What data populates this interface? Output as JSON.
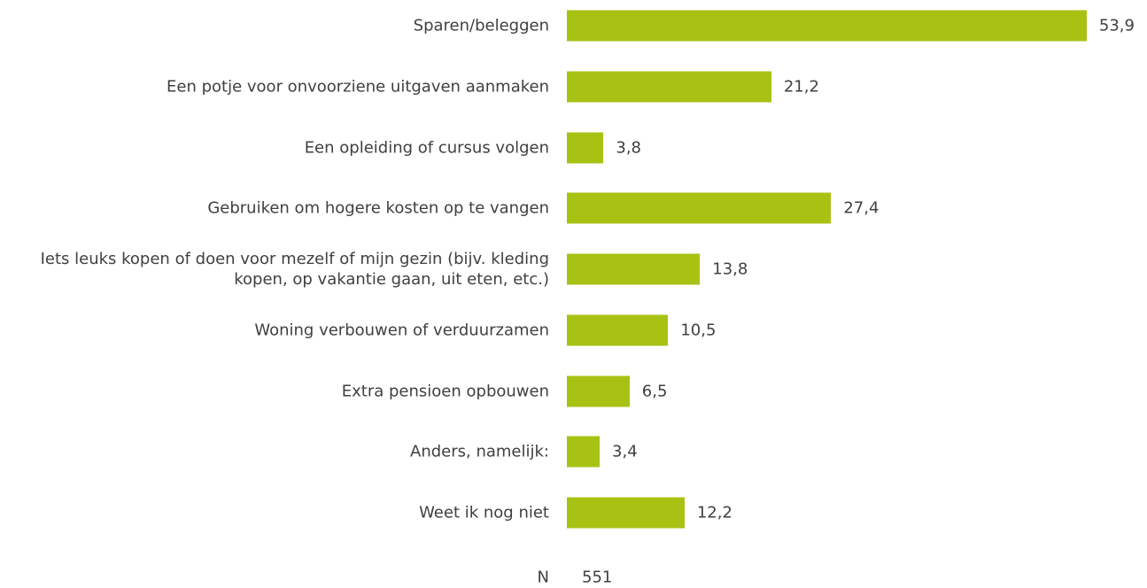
{
  "chart_data": {
    "type": "bar",
    "orientation": "horizontal",
    "color": "#a8c214",
    "categories": [
      "Sparen/beleggen",
      "Een potje voor onvoorziene uitgaven aanmaken",
      "Een opleiding of cursus volgen",
      "Gebruiken om hogere kosten op te vangen",
      "Iets leuks kopen of doen voor mezelf of mijn gezin (bijv. kleding kopen, op vakantie gaan, uit eten, etc.)",
      "Woning verbouwen of verduurzamen",
      "Extra pensioen opbouwen",
      "Anders, namelijk:",
      "Weet ik nog niet"
    ],
    "values": [
      53.9,
      21.2,
      3.8,
      27.4,
      13.8,
      10.5,
      6.5,
      3.4,
      12.2
    ],
    "value_labels": [
      "53,9",
      "21,2",
      "3,8",
      "27,4",
      "13,8",
      "10,5",
      "6,5",
      "3,4",
      "12,2"
    ],
    "n_label": "N",
    "n_value": 551
  }
}
